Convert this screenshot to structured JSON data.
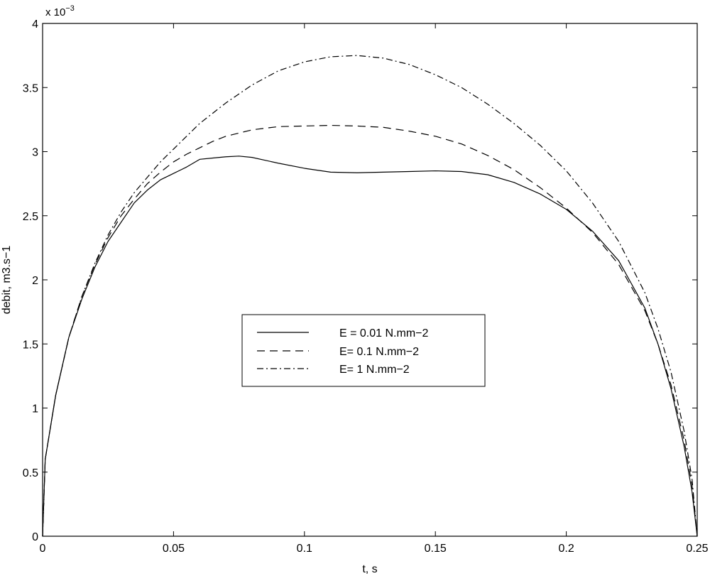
{
  "chart_data": {
    "type": "line",
    "title": "",
    "xlabel": "t, s",
    "ylabel": "debit, m3.s−1",
    "y_multiplier_label": "x 10",
    "y_multiplier_exponent": "−3",
    "xlim": [
      0,
      0.25
    ],
    "ylim": [
      0,
      4
    ],
    "x_ticks": [
      0,
      0.05,
      0.1,
      0.15,
      0.2,
      0.25
    ],
    "x_tick_labels": [
      "0",
      "0.05",
      "0.1",
      "0.15",
      "0.2",
      "0.25"
    ],
    "y_ticks": [
      0,
      0.5,
      1,
      1.5,
      2,
      2.5,
      3,
      3.5,
      4
    ],
    "y_tick_labels": [
      "0",
      "0.5",
      "1",
      "1.5",
      "2",
      "2.5",
      "3",
      "3.5",
      "4"
    ],
    "grid": false,
    "legend_position": "center",
    "series": [
      {
        "name": "E = 0.01 N.mm−2",
        "style": "solid",
        "x": [
          0,
          0.001,
          0.005,
          0.01,
          0.015,
          0.02,
          0.025,
          0.03,
          0.035,
          0.04,
          0.045,
          0.05,
          0.055,
          0.06,
          0.065,
          0.07,
          0.075,
          0.08,
          0.09,
          0.1,
          0.11,
          0.12,
          0.13,
          0.14,
          0.15,
          0.16,
          0.17,
          0.18,
          0.19,
          0.2,
          0.21,
          0.22,
          0.23,
          0.235,
          0.24,
          0.245,
          0.248,
          0.25
        ],
        "y": [
          0,
          0.6,
          1.1,
          1.55,
          1.85,
          2.1,
          2.3,
          2.45,
          2.6,
          2.7,
          2.78,
          2.83,
          2.88,
          2.94,
          2.95,
          2.96,
          2.965,
          2.955,
          2.91,
          2.87,
          2.84,
          2.835,
          2.84,
          2.845,
          2.85,
          2.845,
          2.82,
          2.76,
          2.67,
          2.55,
          2.38,
          2.15,
          1.78,
          1.5,
          1.15,
          0.7,
          0.35,
          0
        ]
      },
      {
        "name": "E= 0.1 N.mm−2",
        "style": "dashed",
        "x": [
          0,
          0.001,
          0.005,
          0.01,
          0.015,
          0.02,
          0.025,
          0.03,
          0.035,
          0.04,
          0.045,
          0.05,
          0.055,
          0.06,
          0.065,
          0.07,
          0.08,
          0.09,
          0.1,
          0.11,
          0.12,
          0.13,
          0.14,
          0.15,
          0.16,
          0.17,
          0.18,
          0.19,
          0.2,
          0.21,
          0.22,
          0.23,
          0.235,
          0.24,
          0.245,
          0.248,
          0.25
        ],
        "y": [
          0,
          0.6,
          1.1,
          1.55,
          1.87,
          2.12,
          2.33,
          2.5,
          2.63,
          2.75,
          2.84,
          2.92,
          2.98,
          3.03,
          3.08,
          3.12,
          3.17,
          3.195,
          3.2,
          3.205,
          3.2,
          3.19,
          3.16,
          3.12,
          3.06,
          2.97,
          2.86,
          2.72,
          2.56,
          2.37,
          2.12,
          1.76,
          1.5,
          1.18,
          0.75,
          0.4,
          0
        ]
      },
      {
        "name": "E= 1 N.mm−2",
        "style": "dashdot",
        "x": [
          0,
          0.001,
          0.005,
          0.01,
          0.015,
          0.02,
          0.025,
          0.03,
          0.035,
          0.04,
          0.045,
          0.05,
          0.055,
          0.06,
          0.065,
          0.07,
          0.08,
          0.09,
          0.1,
          0.11,
          0.12,
          0.13,
          0.14,
          0.15,
          0.16,
          0.17,
          0.18,
          0.19,
          0.2,
          0.21,
          0.22,
          0.23,
          0.235,
          0.24,
          0.245,
          0.248,
          0.25
        ],
        "y": [
          0,
          0.6,
          1.1,
          1.55,
          1.87,
          2.13,
          2.35,
          2.53,
          2.68,
          2.8,
          2.92,
          3.02,
          3.12,
          3.22,
          3.3,
          3.38,
          3.52,
          3.63,
          3.7,
          3.74,
          3.75,
          3.73,
          3.68,
          3.6,
          3.5,
          3.37,
          3.22,
          3.05,
          2.85,
          2.6,
          2.3,
          1.9,
          1.62,
          1.28,
          0.82,
          0.45,
          0
        ]
      }
    ]
  }
}
